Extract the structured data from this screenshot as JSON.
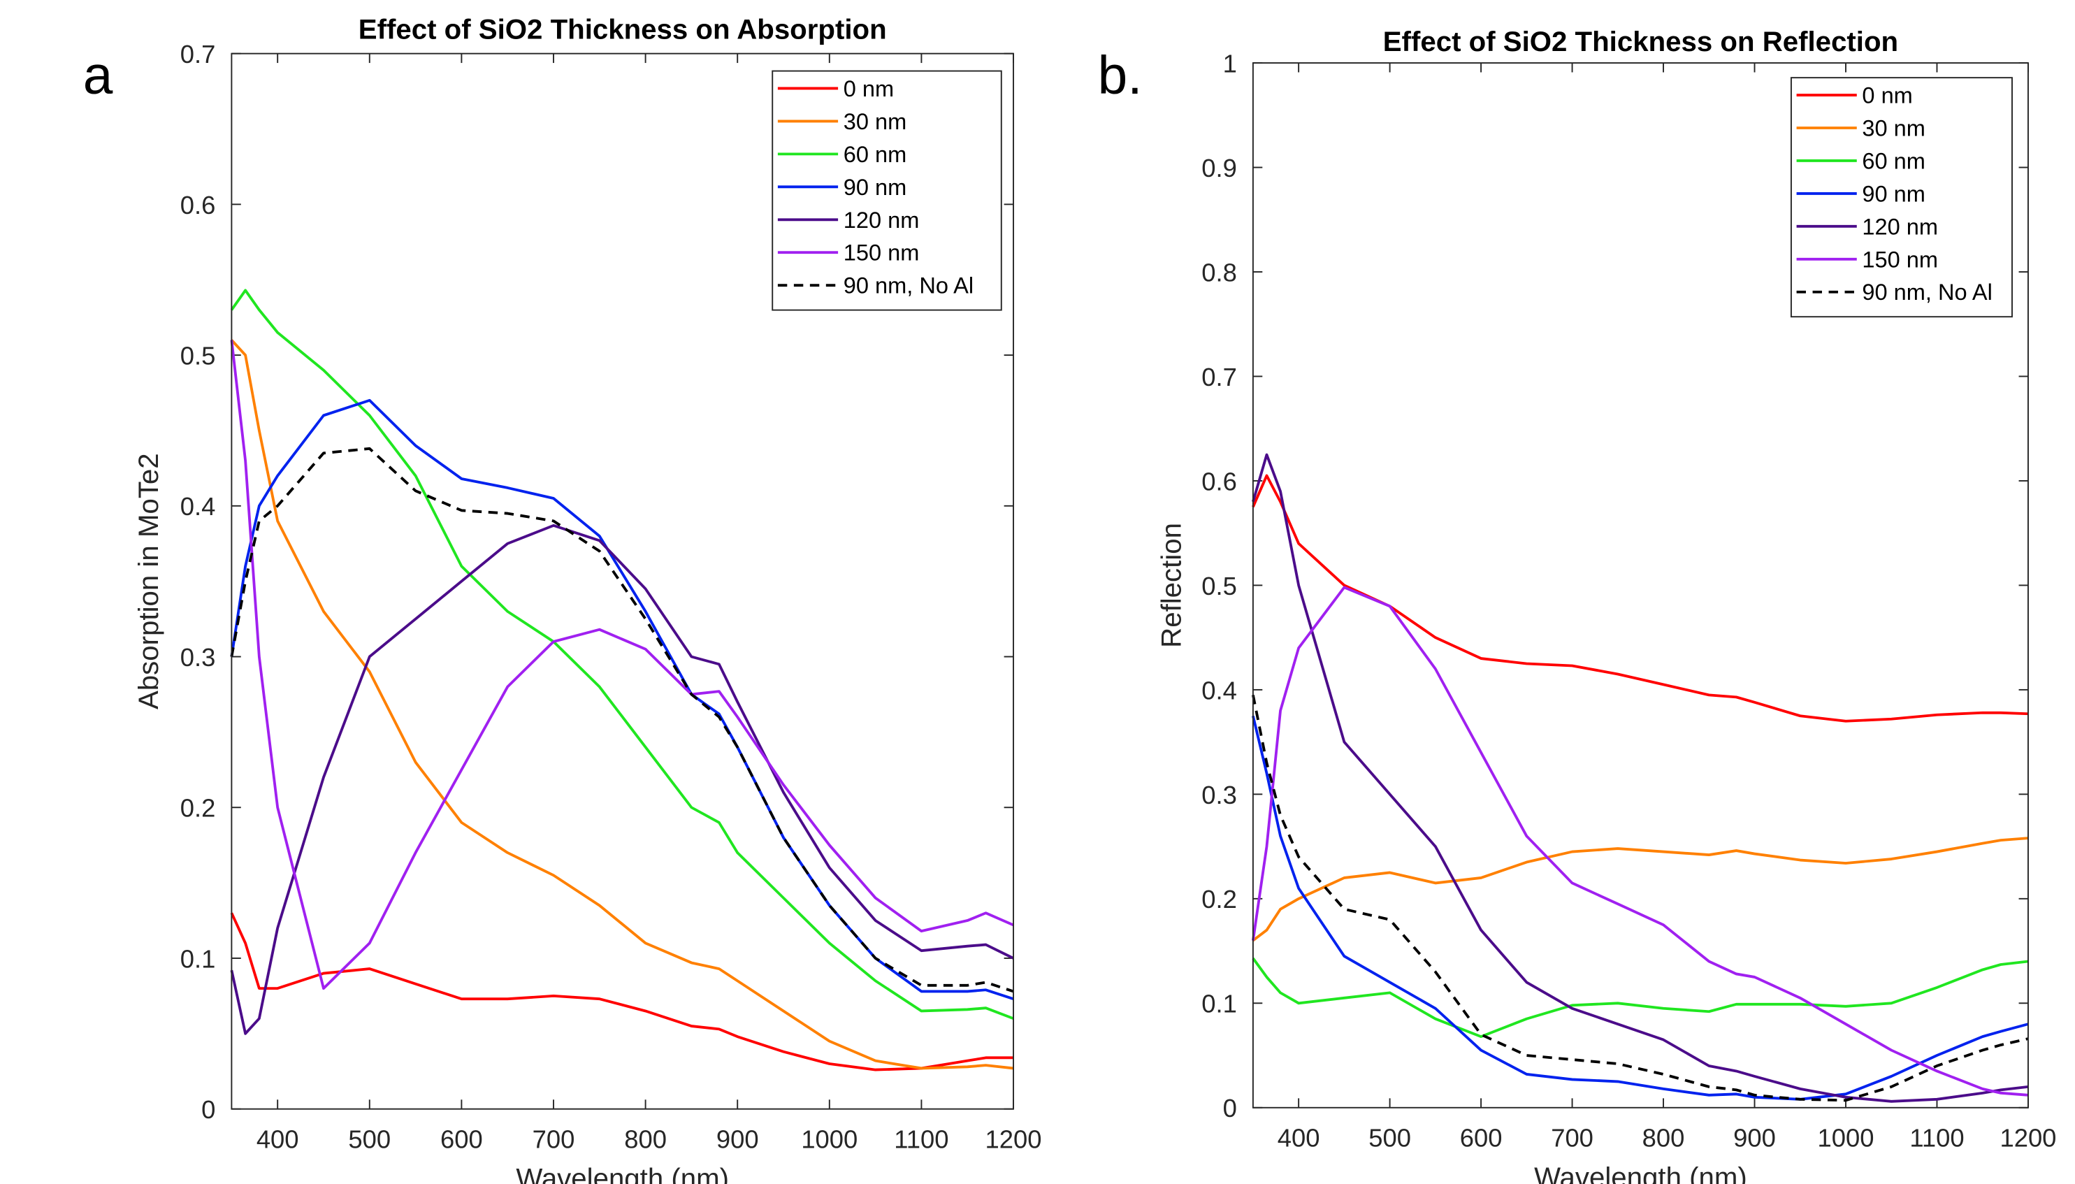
{
  "chart_data": [
    {
      "type": "line",
      "panel_label": "a",
      "title": "Effect of SiO2 Thickness on Absorption",
      "x_label": "Wavelength (nm)",
      "y_label": "Absorption in MoTe2",
      "x": [
        350,
        365,
        380,
        400,
        450,
        500,
        550,
        600,
        650,
        700,
        750,
        800,
        850,
        880,
        900,
        950,
        1000,
        1050,
        1100,
        1150,
        1170,
        1200
      ],
      "xlim": [
        350,
        1200
      ],
      "xticks": [
        400,
        500,
        600,
        700,
        800,
        900,
        1000,
        1100,
        1200
      ],
      "ylim": [
        0,
        0.7
      ],
      "yticks": [
        0,
        0.1,
        0.2,
        0.3,
        0.4,
        0.5,
        0.6,
        0.7
      ],
      "legend": "upper right",
      "series": [
        {
          "name": "0 nm",
          "color": "#ff0000",
          "values": [
            0.13,
            0.11,
            0.08,
            0.08,
            0.09,
            0.093,
            0.083,
            0.073,
            0.073,
            0.075,
            0.073,
            0.065,
            0.055,
            0.053,
            0.048,
            0.038,
            0.03,
            0.026,
            0.027,
            0.032,
            0.034,
            0.034
          ]
        },
        {
          "name": "30 nm",
          "color": "#ff8000",
          "values": [
            0.51,
            0.5,
            0.45,
            0.39,
            0.33,
            0.29,
            0.23,
            0.19,
            0.17,
            0.155,
            0.135,
            0.11,
            0.097,
            0.093,
            0.085,
            0.065,
            0.045,
            0.032,
            0.027,
            0.028,
            0.029,
            0.027
          ]
        },
        {
          "name": "60 nm",
          "color": "#20e620",
          "values": [
            0.53,
            0.543,
            0.53,
            0.515,
            0.49,
            0.46,
            0.42,
            0.36,
            0.33,
            0.31,
            0.28,
            0.24,
            0.2,
            0.19,
            0.17,
            0.14,
            0.11,
            0.085,
            0.065,
            0.066,
            0.067,
            0.06
          ]
        },
        {
          "name": "90 nm",
          "color": "#0022ee",
          "values": [
            0.3,
            0.36,
            0.4,
            0.42,
            0.46,
            0.47,
            0.44,
            0.418,
            0.412,
            0.405,
            0.38,
            0.33,
            0.275,
            0.262,
            0.24,
            0.18,
            0.135,
            0.1,
            0.078,
            0.078,
            0.079,
            0.073
          ]
        },
        {
          "name": "120 nm",
          "color": "#4b0c8a",
          "values": [
            0.092,
            0.05,
            0.06,
            0.12,
            0.22,
            0.3,
            0.325,
            0.35,
            0.375,
            0.387,
            0.377,
            0.345,
            0.3,
            0.295,
            0.27,
            0.21,
            0.16,
            0.125,
            0.105,
            0.108,
            0.109,
            0.1
          ]
        },
        {
          "name": "150 nm",
          "color": "#a020f0",
          "values": [
            0.51,
            0.43,
            0.3,
            0.2,
            0.08,
            0.11,
            0.17,
            0.225,
            0.28,
            0.31,
            0.318,
            0.305,
            0.275,
            0.277,
            0.26,
            0.215,
            0.175,
            0.14,
            0.118,
            0.125,
            0.13,
            0.122
          ]
        },
        {
          "name": "90 nm, No Al",
          "color": "#000000",
          "dashed": true,
          "values": [
            0.3,
            0.35,
            0.39,
            0.4,
            0.435,
            0.438,
            0.41,
            0.397,
            0.395,
            0.39,
            0.37,
            0.325,
            0.275,
            0.26,
            0.24,
            0.18,
            0.135,
            0.1,
            0.082,
            0.082,
            0.084,
            0.078
          ]
        }
      ]
    },
    {
      "type": "line",
      "panel_label": "b.",
      "title": "Effect of SiO2 Thickness on Reflection",
      "x_label": "Wavelength (nm)",
      "y_label": "Reflection",
      "x": [
        350,
        365,
        380,
        400,
        450,
        500,
        550,
        600,
        650,
        700,
        750,
        800,
        850,
        880,
        900,
        950,
        1000,
        1050,
        1100,
        1150,
        1170,
        1200
      ],
      "xlim": [
        350,
        1200
      ],
      "xticks": [
        400,
        500,
        600,
        700,
        800,
        900,
        1000,
        1100,
        1200
      ],
      "ylim": [
        0,
        1
      ],
      "yticks": [
        0,
        0.1,
        0.2,
        0.3,
        0.4,
        0.5,
        0.6,
        0.7,
        0.8,
        0.9,
        1
      ],
      "legend": "upper right",
      "series": [
        {
          "name": "0 nm",
          "color": "#ff0000",
          "values": [
            0.575,
            0.605,
            0.58,
            0.54,
            0.5,
            0.48,
            0.45,
            0.43,
            0.425,
            0.423,
            0.415,
            0.405,
            0.395,
            0.393,
            0.388,
            0.375,
            0.37,
            0.372,
            0.376,
            0.378,
            0.378,
            0.377
          ]
        },
        {
          "name": "30 nm",
          "color": "#ff8000",
          "values": [
            0.16,
            0.17,
            0.19,
            0.2,
            0.22,
            0.225,
            0.215,
            0.22,
            0.235,
            0.245,
            0.248,
            0.245,
            0.242,
            0.246,
            0.243,
            0.237,
            0.234,
            0.238,
            0.245,
            0.253,
            0.256,
            0.258
          ]
        },
        {
          "name": "60 nm",
          "color": "#20e620",
          "values": [
            0.143,
            0.125,
            0.11,
            0.1,
            0.105,
            0.11,
            0.085,
            0.068,
            0.085,
            0.098,
            0.1,
            0.095,
            0.092,
            0.099,
            0.099,
            0.099,
            0.097,
            0.1,
            0.115,
            0.132,
            0.137,
            0.14
          ]
        },
        {
          "name": "90 nm",
          "color": "#0022ee",
          "values": [
            0.375,
            0.32,
            0.26,
            0.21,
            0.145,
            0.12,
            0.095,
            0.055,
            0.032,
            0.027,
            0.025,
            0.018,
            0.012,
            0.013,
            0.01,
            0.008,
            0.013,
            0.03,
            0.05,
            0.068,
            0.073,
            0.08
          ]
        },
        {
          "name": "120 nm",
          "color": "#4b0c8a",
          "values": [
            0.58,
            0.625,
            0.59,
            0.5,
            0.35,
            0.3,
            0.25,
            0.17,
            0.12,
            0.095,
            0.08,
            0.065,
            0.04,
            0.035,
            0.03,
            0.018,
            0.01,
            0.006,
            0.008,
            0.014,
            0.017,
            0.02
          ]
        },
        {
          "name": "150 nm",
          "color": "#a020f0",
          "values": [
            0.16,
            0.25,
            0.38,
            0.44,
            0.498,
            0.48,
            0.42,
            0.34,
            0.26,
            0.215,
            0.195,
            0.175,
            0.14,
            0.128,
            0.125,
            0.105,
            0.08,
            0.055,
            0.035,
            0.018,
            0.014,
            0.012
          ]
        },
        {
          "name": "90 nm, No Al",
          "color": "#000000",
          "dashed": true,
          "values": [
            0.395,
            0.33,
            0.28,
            0.24,
            0.19,
            0.18,
            0.13,
            0.07,
            0.05,
            0.046,
            0.042,
            0.032,
            0.02,
            0.017,
            0.012,
            0.008,
            0.007,
            0.02,
            0.04,
            0.055,
            0.06,
            0.066
          ]
        }
      ]
    }
  ]
}
